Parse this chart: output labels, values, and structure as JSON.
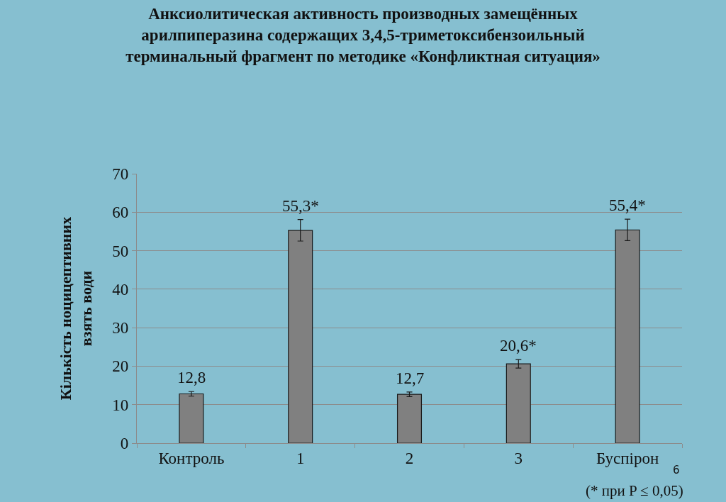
{
  "chart_data": {
    "type": "bar",
    "title": "Анксиолитическая активность производных замещённых\nарилпиперазина содержащих 3,4,5-триметоксибензоильный\nтерминальный фрагмент по методике «Конфликтная ситуация»",
    "ylabel": "Кількість ноцицептивних\nвзять води",
    "categories": [
      "Контроль",
      "1",
      "2",
      "3",
      "Буспірон"
    ],
    "values": [
      12.8,
      55.3,
      12.7,
      20.6,
      55.4
    ],
    "errors": [
      0.6,
      2.8,
      0.6,
      1.1,
      2.8
    ],
    "value_labels": [
      "12,8",
      "55,3*",
      "12,7",
      "20,6*",
      "55,4*"
    ],
    "color": "#808080",
    "ylim": [
      0,
      70
    ],
    "yticks": [
      0,
      10,
      20,
      30,
      40,
      50,
      60,
      70
    ],
    "grid": "y",
    "annotations": [
      "(* при P ≤ 0,05)",
      "6"
    ]
  }
}
